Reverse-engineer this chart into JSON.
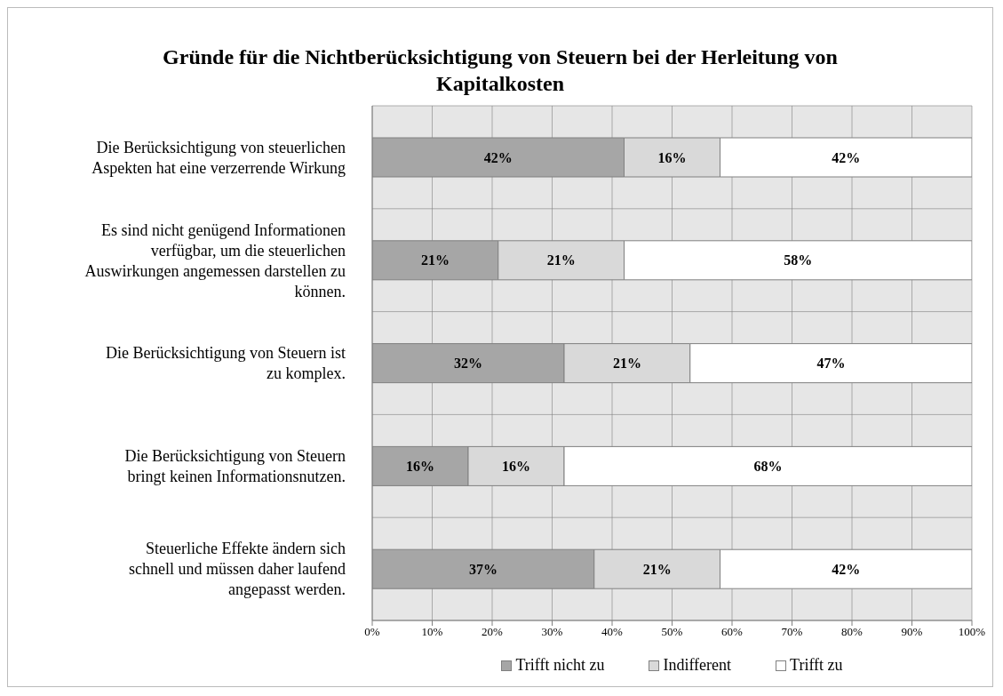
{
  "chart_data": {
    "type": "bar",
    "orientation": "horizontal",
    "stacked": true,
    "title": "Gründe für die Nichtberücksichtigung von Steuern bei der Herleitung von Kapitalkosten",
    "categories": [
      "Die Berücksichtigung von steuerlichen Aspekten hat eine verzerrende Wirkung",
      "Es sind nicht genügend Informationen verfügbar, um die steuerlichen Auswirkungen angemessen darstellen zu können.",
      "Die Berücksichtigung von Steuern ist zu komplex.",
      "Die Berücksichtigung von Steuern bringt keinen Informationsnutzen.",
      "Steuerliche Effekte ändern sich schnell und müssen daher laufend angepasst werden."
    ],
    "series": [
      {
        "name": "Trifft nicht zu",
        "color": "#a6a6a6",
        "values": [
          42,
          21,
          32,
          16,
          37
        ],
        "value_labels": [
          "42%",
          "21%",
          "32%",
          "16%",
          "37%"
        ]
      },
      {
        "name": "Indifferent",
        "color": "#d9d9d9",
        "values": [
          16,
          21,
          21,
          16,
          21
        ],
        "value_labels": [
          "16%",
          "21%",
          "21%",
          "16%",
          "21%"
        ]
      },
      {
        "name": "Trifft zu",
        "color": "#ffffff",
        "values": [
          42,
          58,
          47,
          68,
          42
        ],
        "value_labels": [
          "42%",
          "58%",
          "47%",
          "68%",
          "42%"
        ]
      }
    ],
    "xlim": [
      0,
      100
    ],
    "xticks": [
      {
        "value": 0,
        "label": "0%"
      },
      {
        "value": 10,
        "label": "10%"
      },
      {
        "value": 20,
        "label": "20%"
      },
      {
        "value": 30,
        "label": "30%"
      },
      {
        "value": 40,
        "label": "40%"
      },
      {
        "value": 50,
        "label": "50%"
      },
      {
        "value": 60,
        "label": "60%"
      },
      {
        "value": 70,
        "label": "70%"
      },
      {
        "value": 80,
        "label": "80%"
      },
      {
        "value": 90,
        "label": "90%"
      },
      {
        "value": 100,
        "label": "100%"
      }
    ],
    "grid": true,
    "legend": "bottom"
  }
}
